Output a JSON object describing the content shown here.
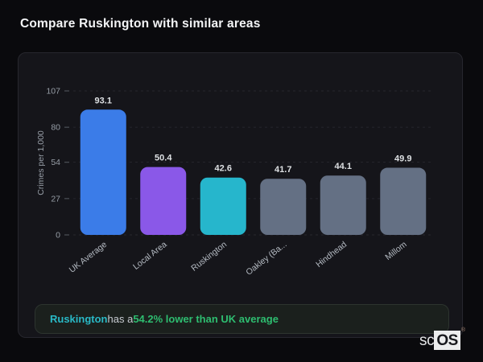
{
  "page": {
    "title": "Compare Ruskington with similar areas"
  },
  "chart_data": {
    "type": "bar",
    "title": "",
    "categories": [
      "UK Average",
      "Local Area",
      "Ruskington",
      "Oakley (Ba...",
      "Hindhead",
      "Millom"
    ],
    "values": [
      93.1,
      50.4,
      42.6,
      41.7,
      44.1,
      49.9
    ],
    "value_labels": [
      "93.1",
      "50.4",
      "42.6",
      "41.7",
      "44.1",
      "49.9"
    ],
    "bar_colors": [
      "#3b7ce8",
      "#8a58e8",
      "#26b6cc",
      "#647084",
      "#647084",
      "#647084"
    ],
    "xlabel": "",
    "ylabel": "Crimes per 1,000",
    "yticks": [
      0,
      27,
      54,
      80,
      107
    ],
    "ylim": [
      0,
      107
    ],
    "grid": "horizontal-dashed",
    "legend": "none",
    "style": {
      "grid_color": "#26262d",
      "tick_mark_color": "#4c5056",
      "axis_text_color": "#979ea7",
      "x_label_color": "#b4bac2",
      "value_label_color": "#dde0e3"
    }
  },
  "insight": {
    "area_label": "Ruskington",
    "connector": "has a",
    "highlight": "54.2% lower than UK average",
    "area_color": "#29b9c6",
    "highlight_color": "#2ebd70"
  },
  "logo": {
    "prefix": "sc",
    "boxed": "OS",
    "registered": "®"
  }
}
